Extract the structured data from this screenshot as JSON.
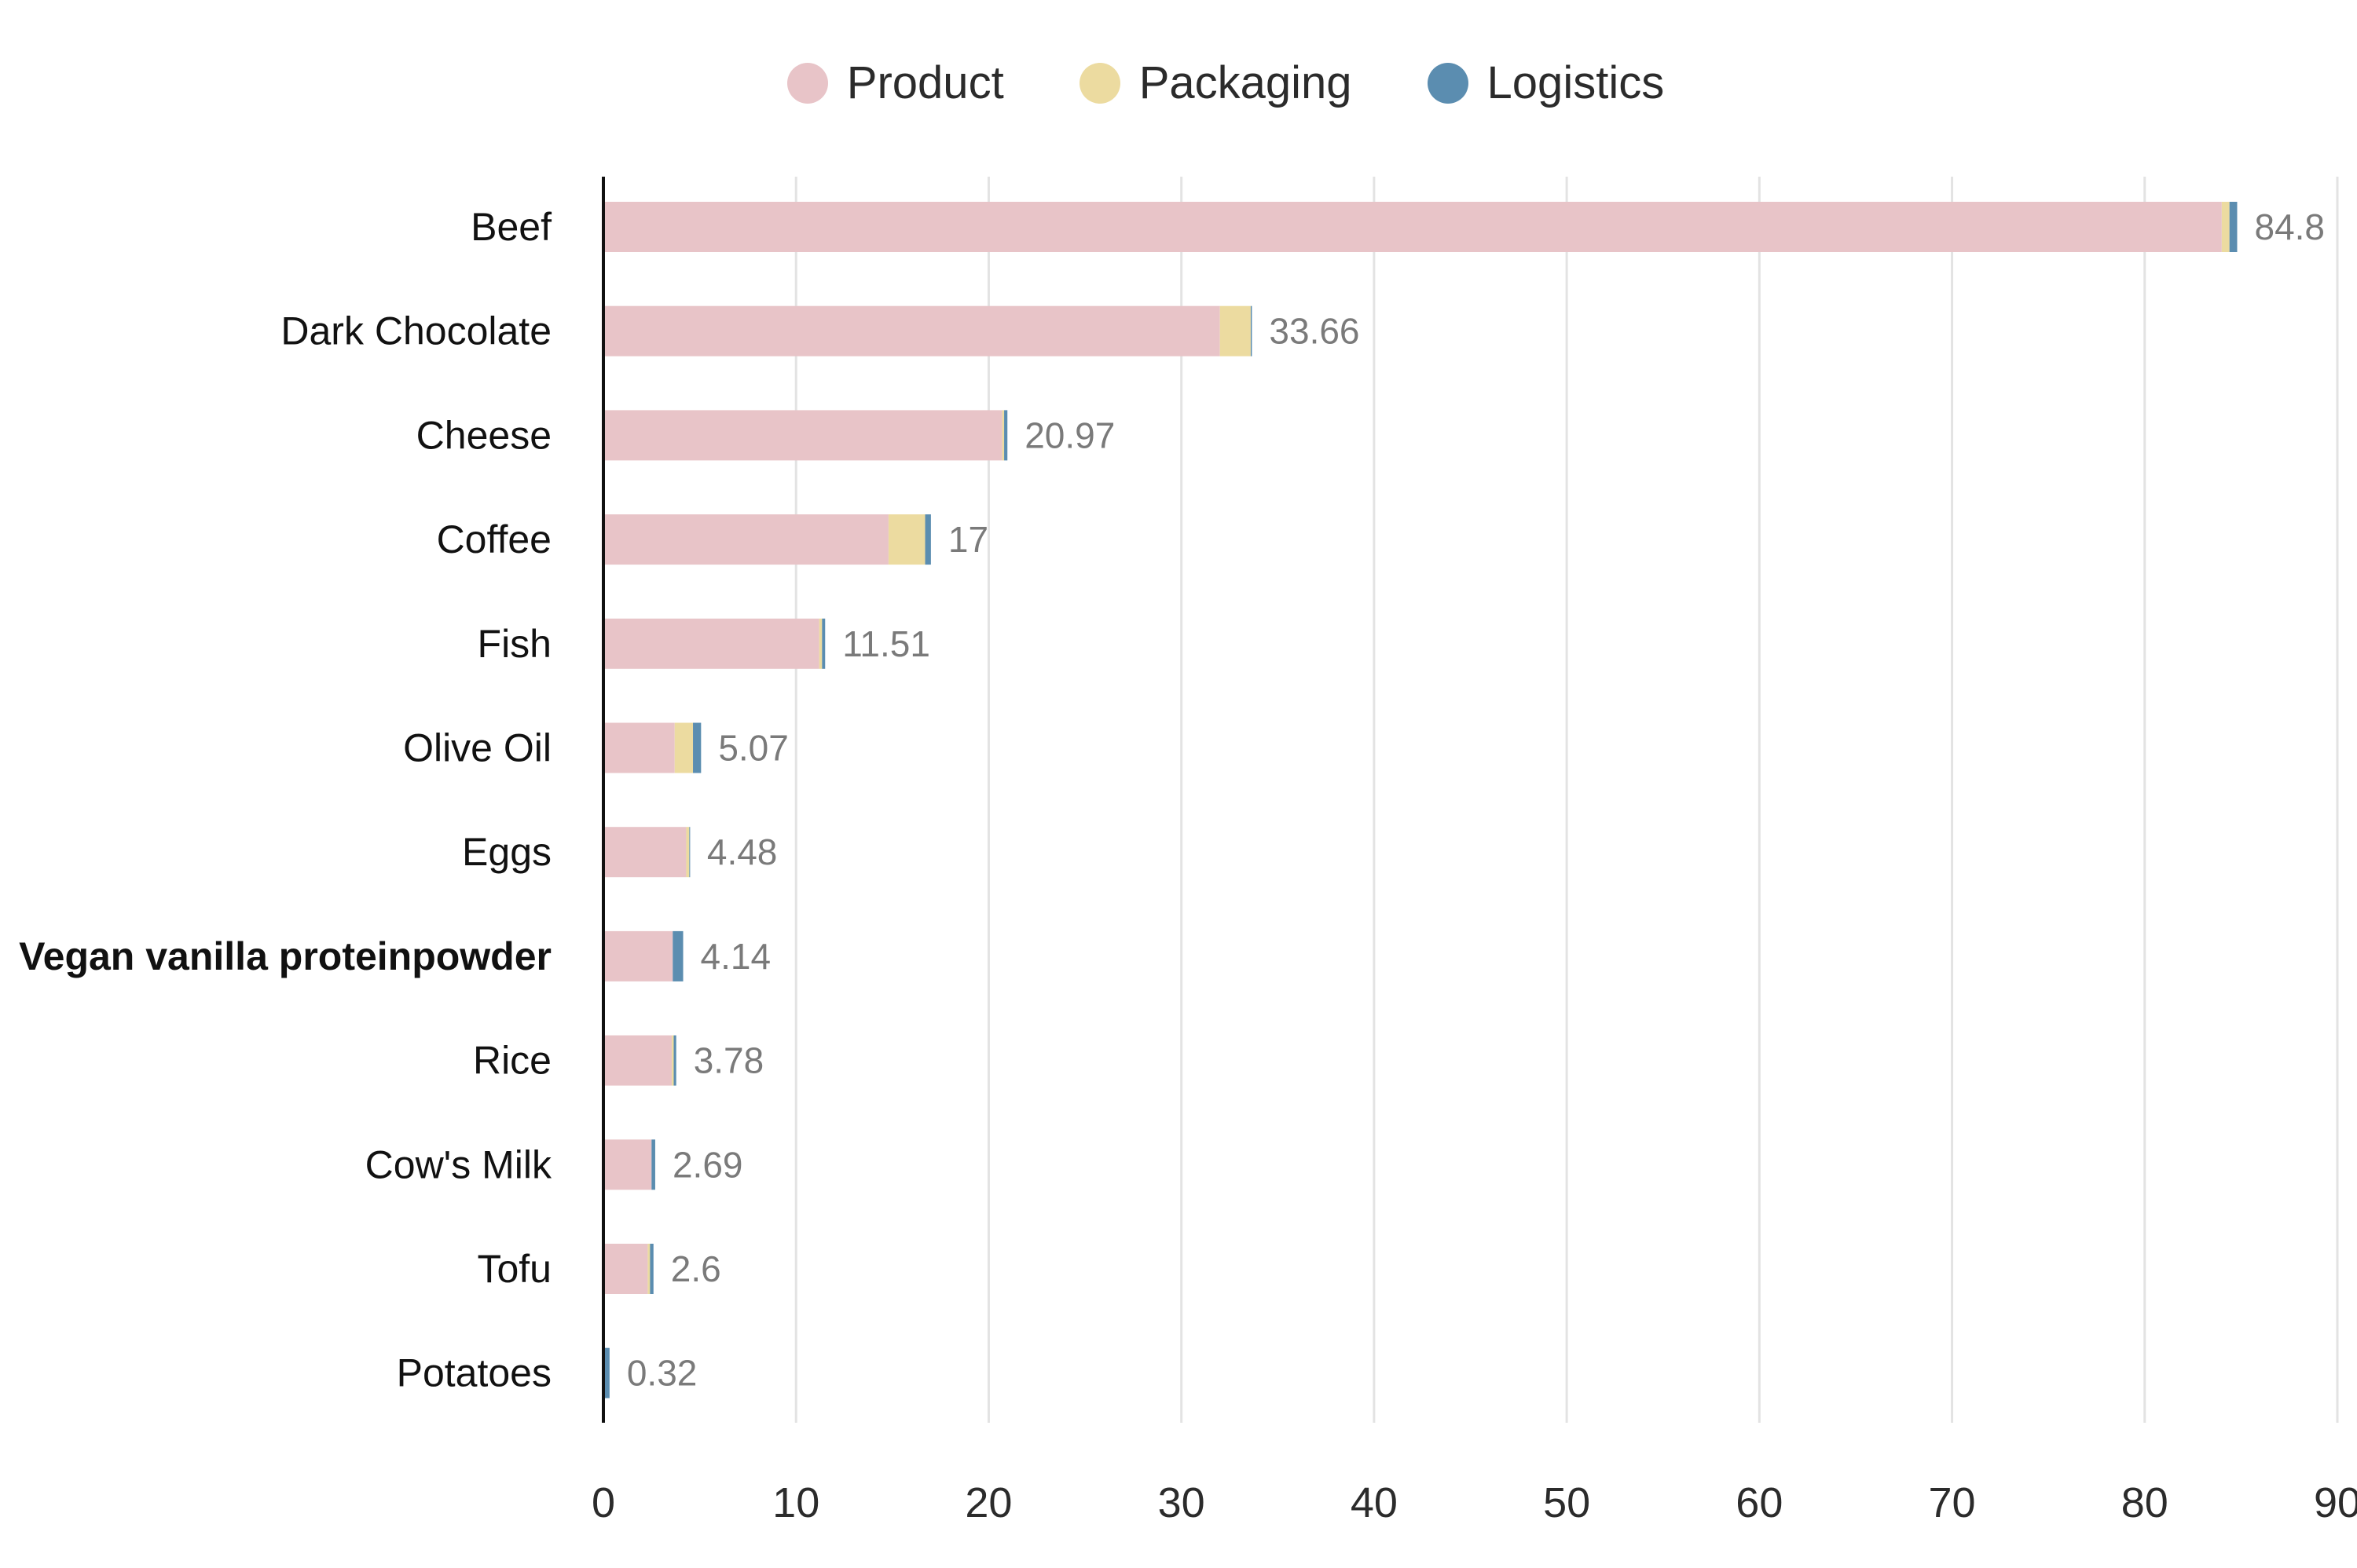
{
  "chart_data": {
    "type": "bar",
    "orientation": "horizontal",
    "stacked": true,
    "title": "",
    "xlabel": "",
    "ylabel": "",
    "xlim": [
      0,
      90
    ],
    "xticks": [
      0,
      10,
      20,
      30,
      40,
      50,
      60,
      70,
      80,
      90
    ],
    "grid": "vertical",
    "legend_position": "top-center",
    "categories": [
      "Beef",
      "Dark Chocolate",
      "Cheese",
      "Coffee",
      "Fish",
      "Olive Oil",
      "Eggs",
      "Vegan vanilla proteinpowder",
      "Rice",
      "Cow's Milk",
      "Tofu",
      "Potatoes"
    ],
    "highlighted_category": "Vegan vanilla proteinpowder",
    "series": [
      {
        "name": "Product",
        "color": "#e8c4c8",
        "values": [
          84.0,
          32.0,
          20.7,
          14.8,
          11.2,
          3.7,
          4.3,
          3.6,
          3.55,
          2.5,
          2.3,
          0.0
        ]
      },
      {
        "name": "Packaging",
        "color": "#ecdba0",
        "values": [
          0.4,
          1.6,
          0.1,
          1.9,
          0.15,
          0.95,
          0.16,
          0.0,
          0.1,
          0.0,
          0.12,
          0.0
        ]
      },
      {
        "name": "Logistics",
        "color": "#5b8db0",
        "values": [
          0.4,
          0.06,
          0.17,
          0.3,
          0.16,
          0.42,
          0.02,
          0.54,
          0.13,
          0.19,
          0.18,
          0.32
        ]
      }
    ],
    "totals": [
      "84.8",
      "33.66",
      "20.97",
      "17",
      "11.51",
      "5.07",
      "4.48",
      "4.14",
      "3.78",
      "2.69",
      "2.6",
      "0.32"
    ]
  }
}
